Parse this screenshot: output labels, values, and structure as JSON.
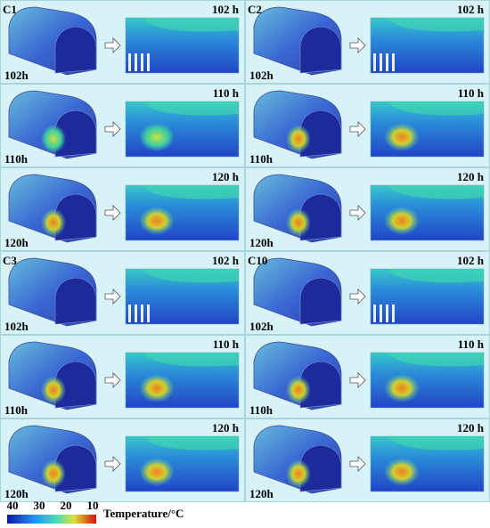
{
  "panels": [
    {
      "label": "C1",
      "rows": [
        {
          "left_label": "102h",
          "right_label": "102 h"
        },
        {
          "left_label": "110h",
          "right_label": "110 h"
        },
        {
          "left_label": "120h",
          "right_label": "120 h"
        }
      ]
    },
    {
      "label": "C2",
      "rows": [
        {
          "left_label": "102h",
          "right_label": "102 h"
        },
        {
          "left_label": "110h",
          "right_label": "110 h"
        },
        {
          "left_label": "120h",
          "right_label": "120 h"
        }
      ]
    },
    {
      "label": "C3",
      "rows": [
        {
          "left_label": "102h",
          "right_label": "102 h"
        },
        {
          "left_label": "110h",
          "right_label": "110 h"
        },
        {
          "left_label": "120h",
          "right_label": "120 h"
        }
      ]
    },
    {
      "label": "C10",
      "rows": [
        {
          "left_label": "102h",
          "right_label": "102 h"
        },
        {
          "left_label": "110h",
          "right_label": "110 h"
        },
        {
          "left_label": "120h",
          "right_label": "120 h"
        }
      ]
    }
  ],
  "colorbar": {
    "tick_labels": [
      "40",
      "30",
      "20",
      "10"
    ],
    "label": "Temperature/°C"
  }
}
